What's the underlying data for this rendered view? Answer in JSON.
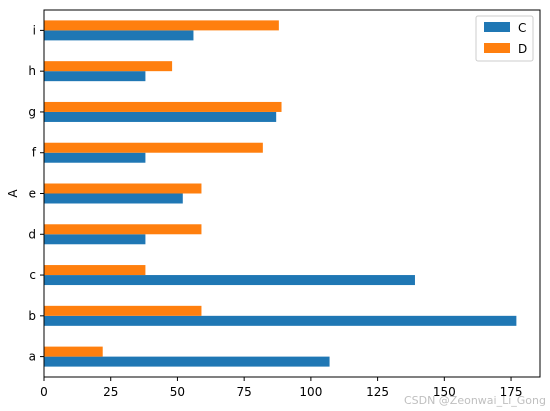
{
  "chart_data": {
    "type": "bar",
    "orientation": "horizontal",
    "categories": [
      "a",
      "b",
      "c",
      "d",
      "e",
      "f",
      "g",
      "h",
      "i"
    ],
    "series": [
      {
        "name": "C",
        "values": [
          107,
          177,
          139,
          38,
          52,
          38,
          87,
          38,
          56
        ],
        "color": "#1f77b4"
      },
      {
        "name": "D",
        "values": [
          22,
          59,
          38,
          59,
          59,
          82,
          89,
          48,
          88
        ],
        "color": "#ff7f0e"
      }
    ],
    "xticks": [
      0,
      25,
      50,
      75,
      100,
      125,
      150,
      175
    ],
    "xlim": [
      0,
      185.85
    ],
    "ylabel": "A",
    "xlabel": "",
    "title": "",
    "legend_position": "top-right",
    "grid": false
  },
  "watermark": "CSDN @Zeonwai_Li_Gong"
}
